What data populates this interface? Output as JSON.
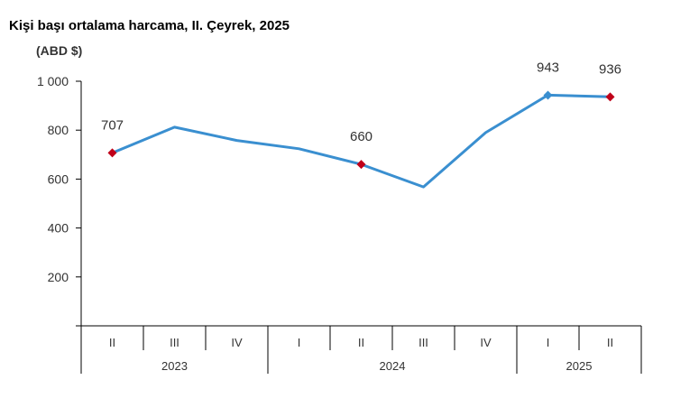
{
  "chart_data": {
    "type": "line",
    "title": "Kişi başı ortalama harcama, II. Çeyrek, 2025",
    "unit_label": "(ABD $)",
    "categories": [
      "II",
      "III",
      "IV",
      "I",
      "II",
      "III",
      "IV",
      "I",
      "II"
    ],
    "groups": [
      {
        "label": "2023",
        "count": 3
      },
      {
        "label": "2024",
        "count": 4
      },
      {
        "label": "2025",
        "count": 2
      }
    ],
    "series": [
      {
        "values": [
          707,
          812,
          758,
          724,
          660,
          568,
          790,
          943,
          936
        ]
      }
    ],
    "data_labels": [
      {
        "index": 0,
        "text": "707"
      },
      {
        "index": 4,
        "text": "660"
      },
      {
        "index": 7,
        "text": "943"
      },
      {
        "index": 8,
        "text": "936"
      }
    ],
    "highlight_points": [
      0,
      4,
      8
    ],
    "blue_points": [
      7
    ],
    "ylim": [
      0,
      1000
    ],
    "yticks": [
      {
        "value": 200,
        "label": "200"
      },
      {
        "value": 400,
        "label": "400"
      },
      {
        "value": 600,
        "label": "600"
      },
      {
        "value": 800,
        "label": "800"
      },
      {
        "value": 1000,
        "label": "1 000"
      }
    ],
    "grid": false,
    "legend": "none",
    "colors": {
      "line": "#3a8fd0",
      "highlight": "#c0001a",
      "axis": "#000000"
    }
  }
}
